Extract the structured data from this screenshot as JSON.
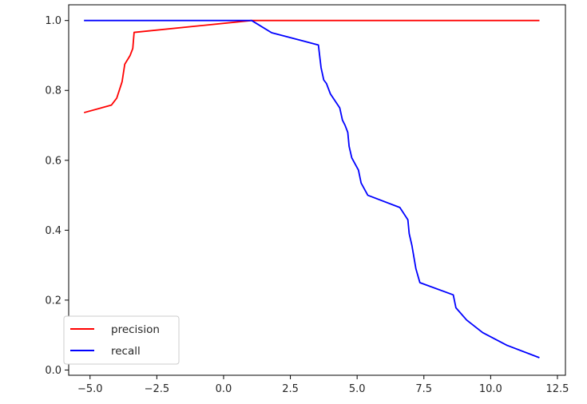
{
  "chart_data": {
    "type": "line",
    "title": "",
    "xlabel": "",
    "ylabel": "",
    "xlim": [
      -5.8,
      12.8
    ],
    "ylim": [
      -0.015,
      1.045
    ],
    "grid": false,
    "legend_position": "lower-left",
    "x_ticks": [
      -5.0,
      -2.5,
      0.0,
      2.5,
      5.0,
      7.5,
      10.0,
      12.5
    ],
    "x_tick_labels": [
      "−5.0",
      "−2.5",
      "0.0",
      "2.5",
      "5.0",
      "7.5",
      "10.0",
      "12.5"
    ],
    "y_ticks": [
      0.0,
      0.2,
      0.4,
      0.6,
      0.8,
      1.0
    ],
    "y_tick_labels": [
      "0.0",
      "0.2",
      "0.4",
      "0.6",
      "0.8",
      "1.0"
    ],
    "series": [
      {
        "name": "precision",
        "color": "#ff0000",
        "x": [
          -5.2,
          -4.2,
          -4.0,
          -3.8,
          -3.75,
          -3.7,
          -3.5,
          -3.4,
          -3.35,
          1.05,
          11.8
        ],
        "y": [
          0.737,
          0.758,
          0.778,
          0.825,
          0.85,
          0.875,
          0.9,
          0.92,
          0.966,
          1.0,
          1.0
        ]
      },
      {
        "name": "recall",
        "color": "#0000ff",
        "x": [
          -5.2,
          1.05,
          1.8,
          3.55,
          3.65,
          3.75,
          3.85,
          4.0,
          4.35,
          4.45,
          4.55,
          4.65,
          4.7,
          4.8,
          5.05,
          5.15,
          5.4,
          6.6,
          6.9,
          6.95,
          7.05,
          7.2,
          7.35,
          8.6,
          8.7,
          9.1,
          9.7,
          10.6,
          11.8
        ],
        "y": [
          1.0,
          1.0,
          0.965,
          0.93,
          0.865,
          0.83,
          0.82,
          0.79,
          0.75,
          0.715,
          0.7,
          0.68,
          0.64,
          0.607,
          0.572,
          0.535,
          0.5,
          0.465,
          0.43,
          0.39,
          0.357,
          0.29,
          0.25,
          0.215,
          0.178,
          0.143,
          0.107,
          0.071,
          0.036
        ]
      }
    ]
  }
}
